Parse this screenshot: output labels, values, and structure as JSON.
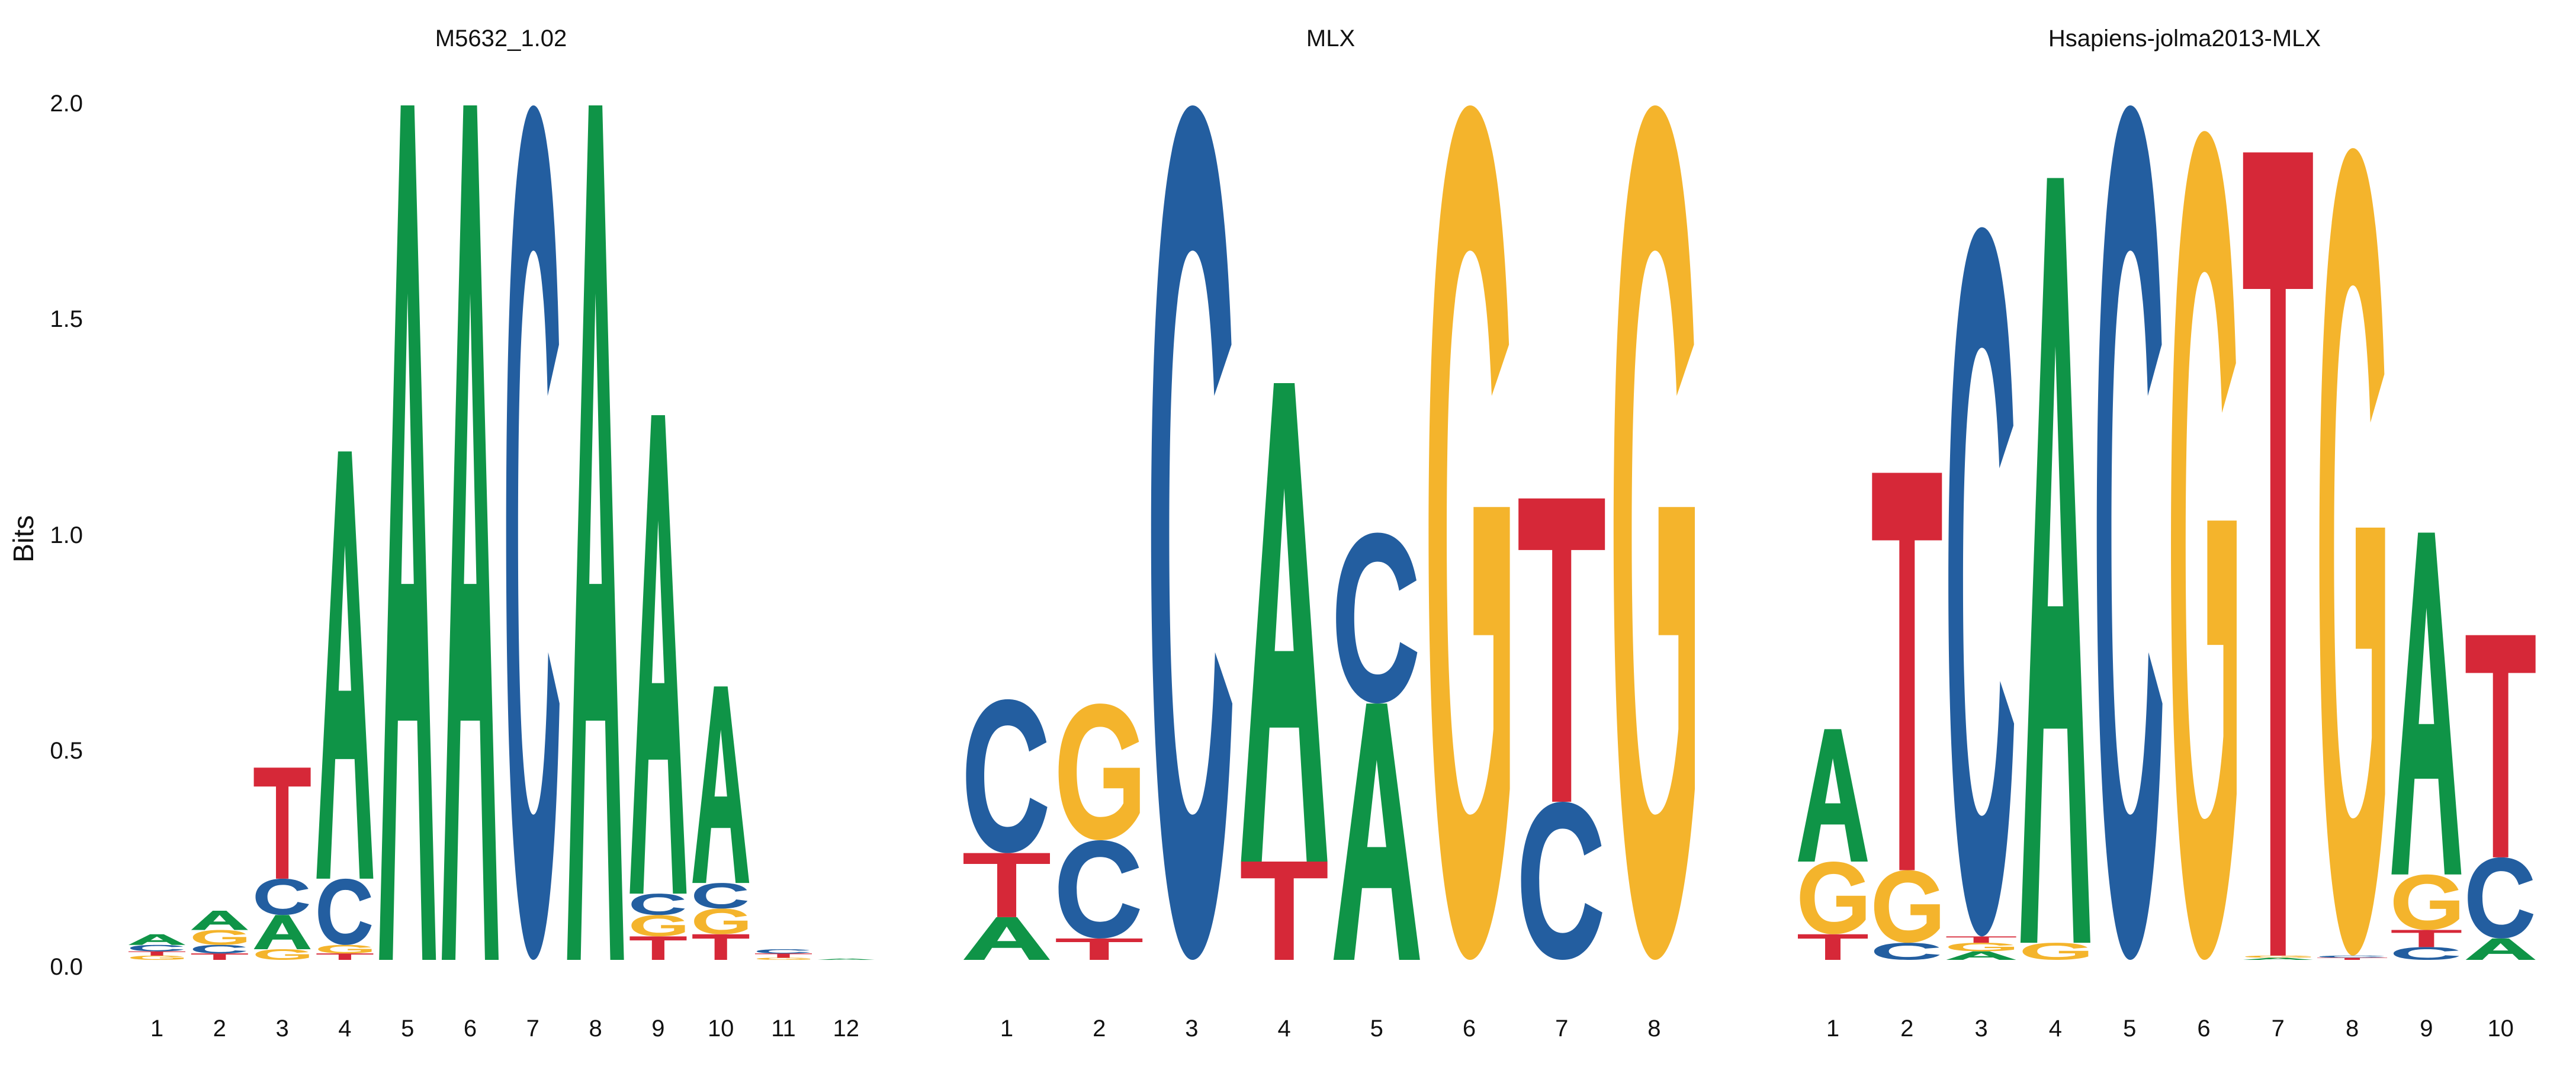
{
  "chart_data": [
    {
      "type": "sequence-logo",
      "title": "M5632_1.02",
      "ylabel": "Bits",
      "ylim": [
        0,
        2
      ],
      "yticks": [
        "0.0",
        "0.5",
        "1.0",
        "1.5",
        "2.0"
      ],
      "categories": [
        "1",
        "2",
        "3",
        "4",
        "5",
        "6",
        "7",
        "8",
        "9",
        "10",
        "11",
        "12"
      ],
      "positions": [
        [
          [
            "G",
            0.01
          ],
          [
            "T",
            0.01
          ],
          [
            "C",
            0.015
          ],
          [
            "A",
            0.025
          ]
        ],
        [
          [
            "T",
            0.015
          ],
          [
            "C",
            0.02
          ],
          [
            "G",
            0.035
          ],
          [
            "A",
            0.045
          ]
        ],
        [
          [
            "G",
            0.025
          ],
          [
            "A",
            0.08
          ],
          [
            "C",
            0.085
          ],
          [
            "T",
            0.26
          ]
        ],
        [
          [
            "T",
            0.015
          ],
          [
            "G",
            0.02
          ],
          [
            "C",
            0.155
          ],
          [
            "A",
            1.0
          ]
        ],
        [
          [
            "A",
            2.0
          ]
        ],
        [
          [
            "A",
            2.0
          ]
        ],
        [
          [
            "C",
            2.0
          ]
        ],
        [
          [
            "A",
            2.0
          ]
        ],
        [
          [
            "T",
            0.055
          ],
          [
            "G",
            0.05
          ],
          [
            "C",
            0.05
          ],
          [
            "A",
            1.12
          ]
        ],
        [
          [
            "T",
            0.06
          ],
          [
            "G",
            0.06
          ],
          [
            "C",
            0.06
          ],
          [
            "A",
            0.46
          ]
        ],
        [
          [
            "G",
            0.005
          ],
          [
            "T",
            0.01
          ],
          [
            "C",
            0.01
          ]
        ],
        [
          [
            "A",
            0.003
          ]
        ]
      ]
    },
    {
      "type": "sequence-logo",
      "title": "MLX",
      "ylabel": "",
      "ylim": [
        0,
        2
      ],
      "categories": [
        "1",
        "2",
        "3",
        "4",
        "5",
        "6",
        "7",
        "8"
      ],
      "positions": [
        [
          [
            "A",
            0.1
          ],
          [
            "T",
            0.15
          ],
          [
            "C",
            0.36
          ]
        ],
        [
          [
            "T",
            0.05
          ],
          [
            "C",
            0.23
          ],
          [
            "G",
            0.32
          ]
        ],
        [
          [
            "C",
            2.0
          ]
        ],
        [
          [
            "T",
            0.23
          ],
          [
            "A",
            1.12
          ]
        ],
        [
          [
            "A",
            0.6
          ],
          [
            "C",
            0.4
          ]
        ],
        [
          [
            "G",
            2.0
          ]
        ],
        [
          [
            "C",
            0.37
          ],
          [
            "T",
            0.71
          ]
        ],
        [
          [
            "G",
            2.0
          ]
        ]
      ]
    },
    {
      "type": "sequence-logo",
      "title": "Hsapiens-jolma2013-MLX",
      "ylabel": "",
      "ylim": [
        0,
        2
      ],
      "categories": [
        "1",
        "2",
        "3",
        "4",
        "5",
        "6",
        "7",
        "8",
        "9",
        "10"
      ],
      "positions": [
        [
          [
            "T",
            0.06
          ],
          [
            "G",
            0.17
          ],
          [
            "A",
            0.31
          ]
        ],
        [
          [
            "C",
            0.04
          ],
          [
            "G",
            0.17
          ],
          [
            "T",
            0.93
          ]
        ],
        [
          [
            "A",
            0.02
          ],
          [
            "G",
            0.02
          ],
          [
            "T",
            0.015
          ],
          [
            "C",
            1.66
          ]
        ],
        [
          [
            "G",
            0.04
          ],
          [
            "A",
            1.79
          ]
        ],
        [
          [
            "C",
            2.0
          ]
        ],
        [
          [
            "G",
            1.94
          ]
        ],
        [
          [
            "A",
            0.005
          ],
          [
            "G",
            0.005
          ],
          [
            "T",
            1.88
          ]
        ],
        [
          [
            "T",
            0.005
          ],
          [
            "C",
            0.005
          ],
          [
            "G",
            1.89
          ]
        ],
        [
          [
            "C",
            0.03
          ],
          [
            "T",
            0.04
          ],
          [
            "G",
            0.13
          ],
          [
            "A",
            0.8
          ]
        ],
        [
          [
            "A",
            0.05
          ],
          [
            "C",
            0.19
          ],
          [
            "T",
            0.52
          ]
        ]
      ]
    }
  ],
  "colors": {
    "A": "#0f9447",
    "C": "#235ea0",
    "G": "#f4b42c",
    "T": "#d62838",
    "text": "#111111"
  }
}
